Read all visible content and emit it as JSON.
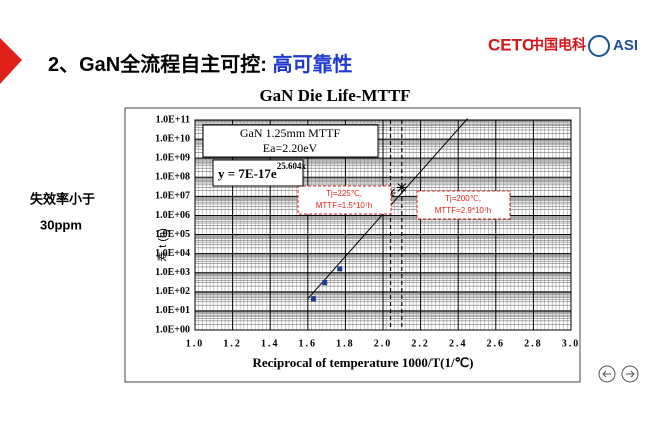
{
  "slide": {
    "heading": "2、GaN全流程自主可控: ",
    "heading_highlight": "高可靠性",
    "logo_cetc": "CETC",
    "logo_cn": "中国电科",
    "logo_asi": "ASI",
    "side_note": [
      "失效率小于",
      "30ppm"
    ]
  },
  "chart_data": {
    "type": "scatter",
    "title": "GaN Die Life-MTTF",
    "x_label": "Reciprocal of temperature 1000/T(1/℃)",
    "y_label": "寿 t (h)",
    "xlim": [
      1.0,
      3.0
    ],
    "xticks": [
      {
        "value": 1.0,
        "label": "1.0"
      },
      {
        "value": 1.2,
        "label": "1.2"
      },
      {
        "value": 1.4,
        "label": "1.4"
      },
      {
        "value": 1.6,
        "label": "1.6"
      },
      {
        "value": 1.8,
        "label": "1.8"
      },
      {
        "value": 2.0,
        "label": "2.0"
      },
      {
        "value": 2.2,
        "label": "2.2"
      },
      {
        "value": 2.4,
        "label": "2.4"
      },
      {
        "value": 2.6,
        "label": "2.6"
      },
      {
        "value": 2.8,
        "label": "2.8"
      },
      {
        "value": 3.0,
        "label": "3.0"
      }
    ],
    "ylim": [
      1,
      100000000000
    ],
    "y_log": true,
    "yticks": [
      {
        "value": 1,
        "label": "1.0E+00"
      },
      {
        "value": 10,
        "label": "1.0E+01"
      },
      {
        "value": 100,
        "label": "1.0E+02"
      },
      {
        "value": 1000,
        "label": "1.0E+03"
      },
      {
        "value": 10000,
        "label": "1.0E+04"
      },
      {
        "value": 100000,
        "label": "1.0E+05"
      },
      {
        "value": 1000000,
        "label": "1.0E+06"
      },
      {
        "value": 10000000,
        "label": "1.0E+07"
      },
      {
        "value": 100000000,
        "label": "1.0E+08"
      },
      {
        "value": 1000000000,
        "label": "1.0E+09"
      },
      {
        "value": 10000000000,
        "label": "1.0E+10"
      },
      {
        "value": 100000000000,
        "label": "1.0E+11"
      }
    ],
    "grid": true,
    "minor_grid": true,
    "series": [
      {
        "color": "#1f3a93",
        "x": [
          1.63,
          1.69,
          1.77
        ],
        "values": [
          43,
          300,
          1600
        ]
      }
    ],
    "fit": {
      "x": [
        1.6,
        2.45
      ],
      "values": [
        43,
        120000000000
      ],
      "color": "#000000"
    },
    "info_box": [
      "GaN 1.25mm MTTF",
      "Ea=2.20eV"
    ],
    "equation": {
      "base": "y = 7E-17e",
      "exponent": "25.604x"
    },
    "annotations": [
      {
        "x": 2.04,
        "y": 15000000,
        "lines": [
          "Tj=225℃,",
          "MTTF=1.5*10⁷h"
        ]
      },
      {
        "x": 2.1,
        "y": 29000000,
        "lines": [
          "Tj=200℃,",
          "MTTF=2.9*10⁷h"
        ]
      }
    ],
    "annotation_color": "#e0201b"
  }
}
